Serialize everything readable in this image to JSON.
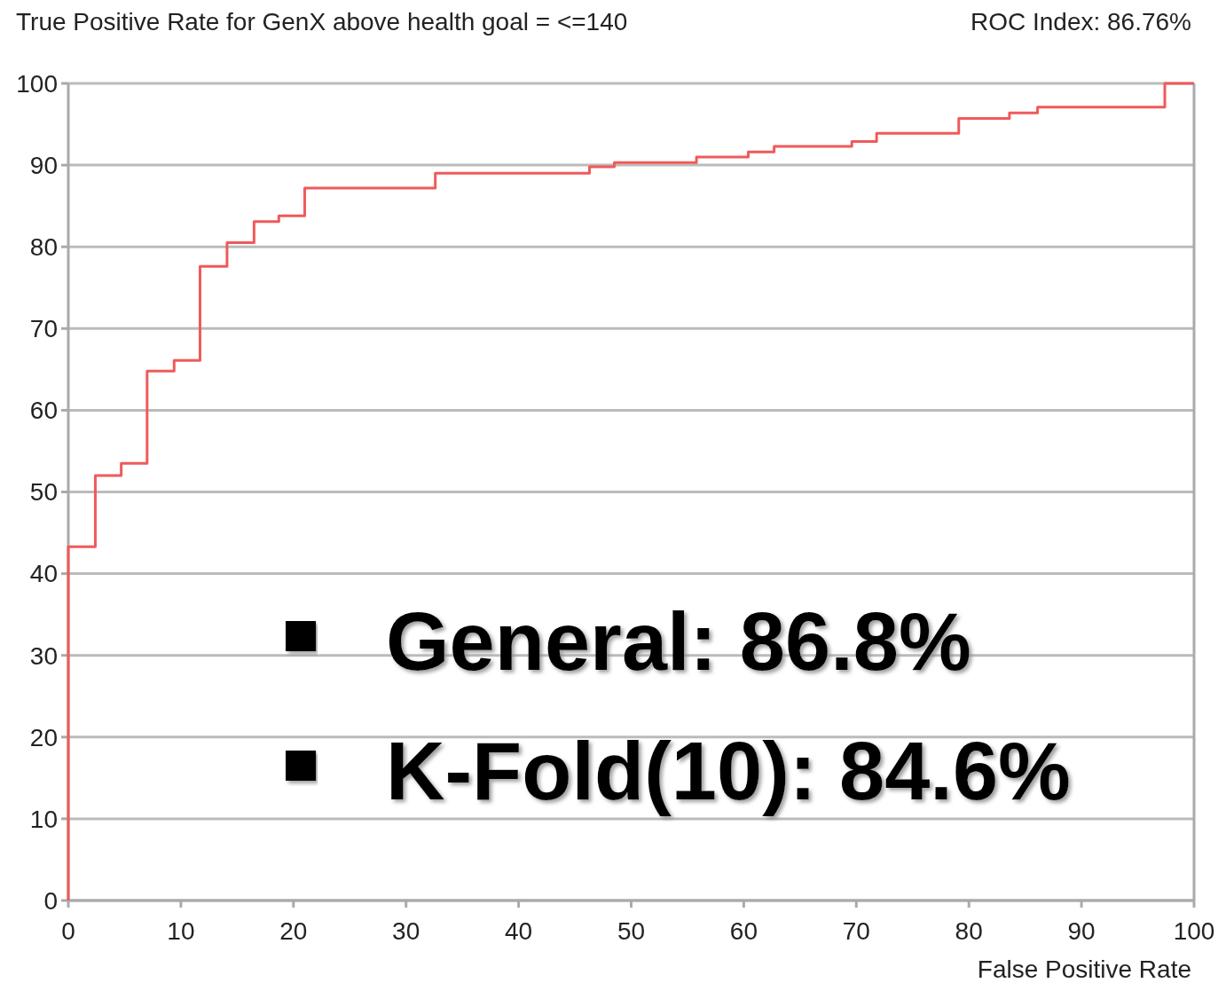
{
  "chart_data": {
    "type": "step",
    "title": "True Positive Rate for GenX above health goal = <=140",
    "subtitle": "ROC Index: 86.76%",
    "xlabel": "False Positive Rate",
    "annotations": [
      "General: 86.8%",
      "K-Fold(10): 84.6%"
    ],
    "series": [
      {
        "color": "#f05a5a",
        "x": [
          0,
          0,
          2.4,
          4.7,
          7.0,
          9.4,
          11.7,
          14.1,
          16.5,
          18.7,
          21.0,
          32.6,
          46.3,
          48.5,
          55.8,
          60.4,
          62.7,
          69.6,
          71.8,
          79.1,
          83.6,
          86.1,
          97.4,
          100
        ],
        "values": [
          0,
          43.3,
          52.0,
          53.5,
          64.8,
          66.1,
          77.6,
          80.5,
          83.1,
          83.8,
          87.2,
          89.0,
          89.8,
          90.3,
          91.0,
          91.6,
          92.3,
          92.9,
          93.9,
          95.7,
          96.4,
          97.1,
          100,
          100
        ]
      }
    ],
    "xlim": [
      0,
      100
    ],
    "ylim": [
      0,
      100
    ],
    "xticks": [
      0,
      10,
      20,
      30,
      40,
      50,
      60,
      70,
      80,
      90,
      100
    ],
    "yticks": [
      0,
      10,
      20,
      30,
      40,
      50,
      60,
      70,
      80,
      90,
      100
    ],
    "grid": "y"
  }
}
